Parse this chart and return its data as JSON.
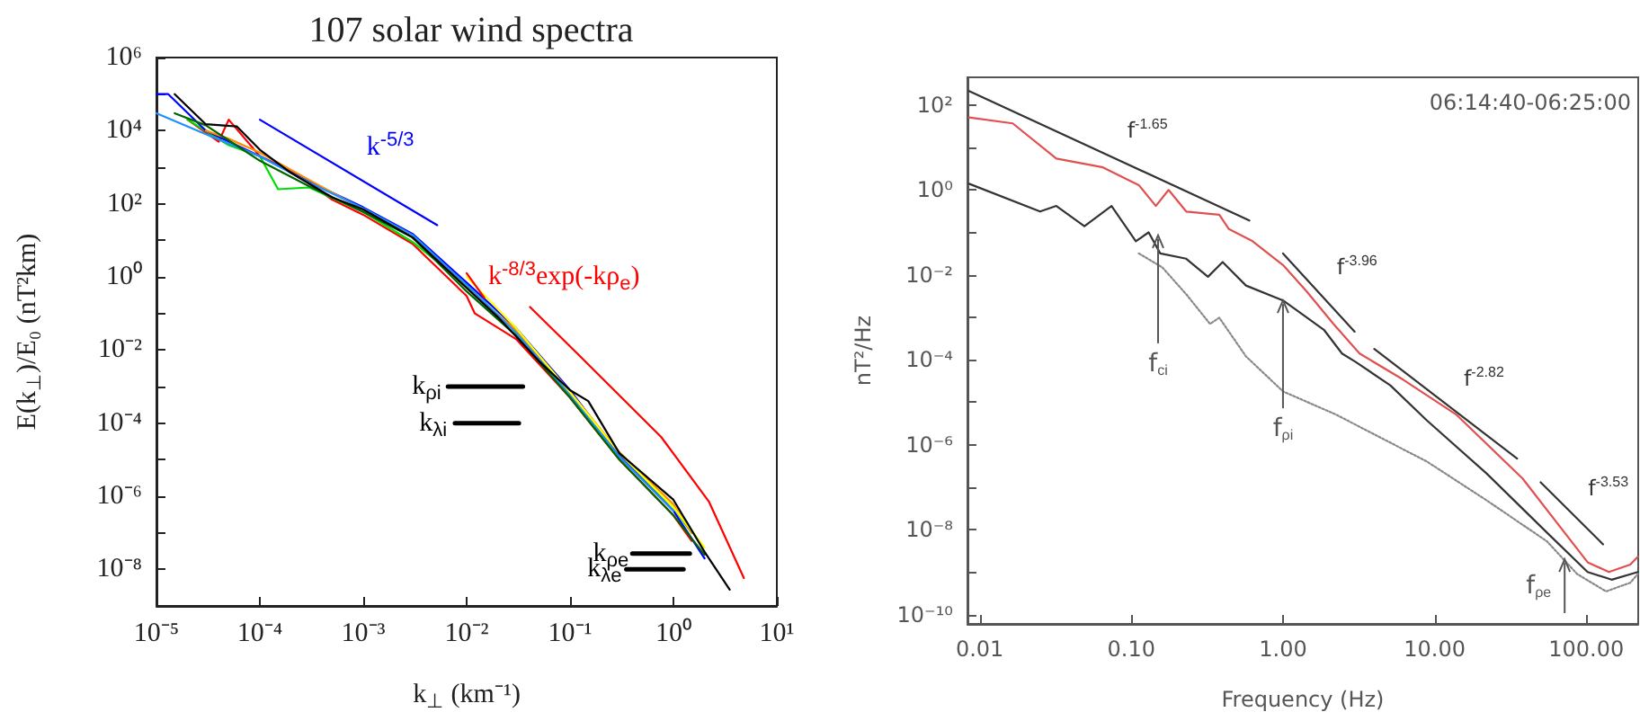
{
  "chart_data": [
    {
      "type": "line",
      "title": "107 solar wind spectra",
      "xlabel": "k$_{⊥}$ (km⁻¹)",
      "ylabel": "E(k$_{⊥}$)/E₀ (nT²km)",
      "log": "xy",
      "marker": "none",
      "grid": false,
      "xlim": [
        1e-05,
        10
      ],
      "ylim": [
        1e-09,
        1000000.0
      ],
      "xticks": [
        {
          "value": 1e-05,
          "label": "10⁻⁵"
        },
        {
          "value": 0.0001,
          "label": "10⁻⁴"
        },
        {
          "value": 0.001,
          "label": "10⁻³"
        },
        {
          "value": 0.01,
          "label": "10⁻²"
        },
        {
          "value": 0.1,
          "label": "10⁻¹"
        },
        {
          "value": 1,
          "label": "10⁰"
        },
        {
          "value": 10,
          "label": "10¹"
        }
      ],
      "yticks": [
        {
          "value": 1000000.0,
          "label": "10⁶"
        },
        {
          "value": 100000.0,
          "label": null
        },
        {
          "value": 10000.0,
          "label": "10⁴"
        },
        {
          "value": 1000.0,
          "label": null
        },
        {
          "value": 100,
          "label": "10²"
        },
        {
          "value": 10,
          "label": null
        },
        {
          "value": 1,
          "label": "10⁰"
        },
        {
          "value": 0.1,
          "label": null
        },
        {
          "value": 0.01,
          "label": "10⁻²"
        },
        {
          "value": 0.001,
          "label": null
        },
        {
          "value": 0.0001,
          "label": "10⁻⁴"
        },
        {
          "value": 1e-05,
          "label": null
        },
        {
          "value": 1e-06,
          "label": "10⁻⁶"
        },
        {
          "value": 1e-07,
          "label": null
        },
        {
          "value": 1e-08,
          "label": "10⁻⁸"
        }
      ],
      "series": [
        {
          "color": "#ff0000",
          "x": [
            2e-05,
            4e-05,
            5e-05,
            0.0001,
            0.0002,
            0.0005,
            0.001,
            0.003,
            0.01,
            0.012,
            0.03,
            0.1,
            0.3,
            1,
            1.5
          ],
          "values": [
            20000.0,
            5000.0,
            20000.0,
            2000.0,
            800,
            130,
            50,
            8,
            0.3,
            0.1,
            0.02,
            0.0005,
            1e-05,
            3e-07,
            6e-08
          ]
        },
        {
          "color": "#00dd00",
          "x": [
            2e-05,
            5e-05,
            0.0001,
            0.00015,
            0.0003,
            0.001,
            0.003,
            0.01,
            0.03,
            0.1,
            0.3,
            1,
            1.5
          ],
          "values": [
            20000.0,
            4000.0,
            2000.0,
            250,
            280,
            60,
            9,
            0.6,
            0.03,
            0.0006,
            1.2e-05,
            5e-07,
            1e-07
          ]
        },
        {
          "color": "#0000ff",
          "x": [
            1e-05,
            1.3e-05,
            3e-05,
            0.0001,
            0.0003,
            0.001,
            0.003,
            0.01,
            0.03,
            0.1,
            0.3,
            1,
            2
          ],
          "values": [
            100000.0,
            100000.0,
            10000.0,
            2000.0,
            400,
            80,
            15,
            0.7,
            0.04,
            0.0008,
            1.3e-05,
            4e-07,
            2e-08
          ]
        },
        {
          "color": "#ff8c00",
          "x": [
            3e-05,
            5e-05,
            0.0001,
            0.0003,
            0.001,
            0.003,
            0.01,
            0.03,
            0.1,
            0.3,
            1,
            1.5
          ],
          "values": [
            10000.0,
            6000.0,
            2500.0,
            450,
            70,
            13,
            0.5,
            0.035,
            0.0007,
            1.6e-05,
            6e-07,
            1e-07
          ]
        },
        {
          "color": "#1e90ff",
          "x": [
            1e-05,
            3e-05,
            0.0001,
            0.0003,
            0.001,
            0.003,
            0.01,
            0.03,
            0.1,
            0.3,
            1
          ],
          "values": [
            30000.0,
            8000.0,
            2000.0,
            380,
            75,
            14,
            0.6,
            0.03,
            0.0006,
            1.2e-05,
            4e-07
          ]
        },
        {
          "color": "#006400",
          "x": [
            1.5e-05,
            3e-05,
            0.0001,
            0.0003,
            0.001,
            0.003,
            0.01,
            0.03,
            0.1,
            0.3,
            1,
            2
          ],
          "values": [
            30000.0,
            14000.0,
            1500.0,
            300,
            60,
            12,
            0.4,
            0.025,
            0.0005,
            1e-05,
            3e-07,
            2.5e-08
          ]
        },
        {
          "color": "#ffff00",
          "x": [
            0.01,
            0.03,
            0.1,
            0.3,
            1,
            2
          ],
          "values": [
            1,
            0.04,
            0.0007,
            1.5e-05,
            5e-07,
            4e-08
          ]
        },
        {
          "color": "#000000",
          "x": [
            1.5e-05,
            3e-05,
            6e-05,
            0.0001,
            0.0002,
            0.0005,
            0.001,
            0.003,
            0.01,
            0.02,
            0.05,
            0.1,
            0.15,
            0.3,
            1,
            2,
            3.5
          ],
          "values": [
            100000.0,
            15000.0,
            13000.0,
            3000.0,
            700,
            150,
            70,
            12,
            0.5,
            0.08,
            0.005,
            0.0008,
            0.0004,
            1.5e-05,
            8e-07,
            3e-08,
            2.8e-09
          ]
        },
        {
          "name": "k$^{-5/3}$",
          "color": "#0000ff",
          "x": [
            0.0001,
            0.0052
          ],
          "values": [
            20000.0,
            26
          ]
        },
        {
          "name": "k$^{-8/3}$exp(-kρ$_{e}$)",
          "color": "#ff0000",
          "x": [
            0.01,
            0.0148,
            0.02,
            0.041,
            0.12,
            0.76,
            2.2,
            4.8
          ],
          "values": [
            1.26,
            0.27,
            null,
            0.15,
            0.0076,
            4.2e-05,
            7.2e-07,
            5.8e-09
          ]
        },
        {
          "name": "k$_{ρi}$",
          "color": "#000000",
          "x": [
            0.0066,
            0.035
          ],
          "values": [
            0.001,
            0.001
          ]
        },
        {
          "name": "k$_{λi}$",
          "color": "#000000",
          "x": [
            0.0077,
            0.032
          ],
          "values": [
            0.0001,
            0.0001
          ]
        },
        {
          "name": "k$_{ρe}$",
          "color": "#000000",
          "x": [
            0.4,
            1.44
          ],
          "values": [
            2.7e-08,
            2.7e-08
          ]
        },
        {
          "name": "k$_{λe}$",
          "color": "#000000",
          "x": [
            0.35,
            1.25
          ],
          "values": [
            1e-08,
            1e-08
          ]
        }
      ]
    },
    {
      "type": "line",
      "xlabel": "Frequency (Hz)",
      "ylabel": "nT²/Hz",
      "log": "xy",
      "marker": "none",
      "grid": false,
      "xlim": [
        0.0083,
        220
      ],
      "ylim": [
        6e-11,
        450
      ],
      "xticks": [
        0.01,
        {
          "value": 0.1,
          "label": "0.10"
        },
        {
          "value": 1,
          "label": "1.00"
        },
        {
          "value": 10,
          "label": "10.00"
        },
        {
          "value": 100,
          "label": "100.00"
        }
      ],
      "yticks": [
        {
          "value": 100,
          "label": "10²"
        },
        {
          "value": 10,
          "label": null
        },
        {
          "value": 1,
          "label": "10⁰"
        },
        {
          "value": 0.1,
          "label": null
        },
        {
          "value": 0.01,
          "label": "10⁻²"
        },
        {
          "value": 0.001,
          "label": null
        },
        {
          "value": 0.0001,
          "label": "10⁻⁴"
        },
        {
          "value": 1e-05,
          "label": null
        },
        {
          "value": 1e-06,
          "label": "10⁻⁶"
        },
        {
          "value": 1e-07,
          "label": null
        },
        {
          "value": 1e-08,
          "label": "10⁻⁸"
        },
        {
          "value": 1e-09,
          "label": null
        },
        {
          "value": 1e-10,
          "label": "10⁻¹⁰"
        }
      ],
      "annotations": [
        "06:14:40-06:25:00",
        {
          "text": "f$_{ci}$",
          "x": 0.15,
          "y": 0.085
        },
        {
          "text": "f$_{ρi}$",
          "x": 1,
          "y": 0.0025
        },
        {
          "text": "f$_{ρe}$",
          "x": 72,
          "y": 2e-09
        }
      ],
      "series": [
        {
          "color": "#e05050",
          "x": [
            0.0085,
            0.0165,
            0.032,
            0.065,
            0.112,
            0.145,
            0.176,
            0.23,
            0.38,
            0.44,
            0.63,
            1,
            1.43,
            2.15,
            3.2,
            6.2,
            13.8,
            38,
            102,
            141,
            195,
            219
          ],
          "values": [
            51,
            37,
            5.5,
            3.4,
            1.3,
            0.42,
            1,
            0.31,
            0.26,
            0.12,
            0.062,
            0.017,
            0.0041,
            0.0007,
            0.00014,
            3.4e-05,
            5.2e-06,
            1.6e-07,
            1.7e-09,
            1e-09,
            1.5e-09,
            2.3e-09
          ]
        },
        {
          "color": "#333333",
          "x": [
            0.0085,
            0.025,
            0.032,
            0.049,
            0.074,
            0.107,
            0.13,
            0.155,
            0.23,
            0.32,
            0.4,
            0.57,
            1,
            1.86,
            2.45,
            3,
            5.1,
            8.9,
            22,
            55,
            102,
            147,
            219
          ],
          "values": [
            1.4,
            0.31,
            0.42,
            0.14,
            0.42,
            0.062,
            0.1,
            0.032,
            0.024,
            0.009,
            0.02,
            0.0056,
            0.0025,
            0.00051,
            0.00014,
            9e-05,
            2.5e-05,
            3.7e-06,
            2.1e-07,
            8.5e-09,
            1e-09,
            6.6e-10,
            1e-09
          ]
        },
        {
          "color": "#888888",
          "line_style": "dotted",
          "x": [
            0.112,
            0.16,
            0.23,
            0.33,
            0.38,
            0.57,
            1,
            2.24,
            8.9,
            22,
            55,
            87,
            135,
            195,
            219
          ],
          "values": [
            0.032,
            0.015,
            0.0035,
            0.0007,
            0.00098,
            0.00012,
            1.8e-05,
            5.1e-06,
            4e-07,
            4.9e-08,
            5.3e-09,
            9e-10,
            3.5e-10,
            5.6e-10,
            9e-10
          ]
        },
        {
          "name": "f$^{-1.65}$",
          "color": "#333333",
          "x": [
            0.0085,
            0.6
          ],
          "values": [
            215,
            0.19
          ]
        },
        {
          "name": "f$^{-3.96}$",
          "color": "#333333",
          "x": [
            1,
            2.97
          ],
          "values": [
            0.032,
            0.00046
          ]
        },
        {
          "name": "f$^{-2.82}$",
          "color": "#333333",
          "x": [
            4,
            35
          ],
          "values": [
            0.00018,
            4.7e-07
          ]
        },
        {
          "name": "f$^{-3.53}$",
          "color": "#333333",
          "x": [
            50,
            129
          ],
          "values": [
            1.3e-07,
            4.5e-09
          ]
        }
      ]
    }
  ]
}
